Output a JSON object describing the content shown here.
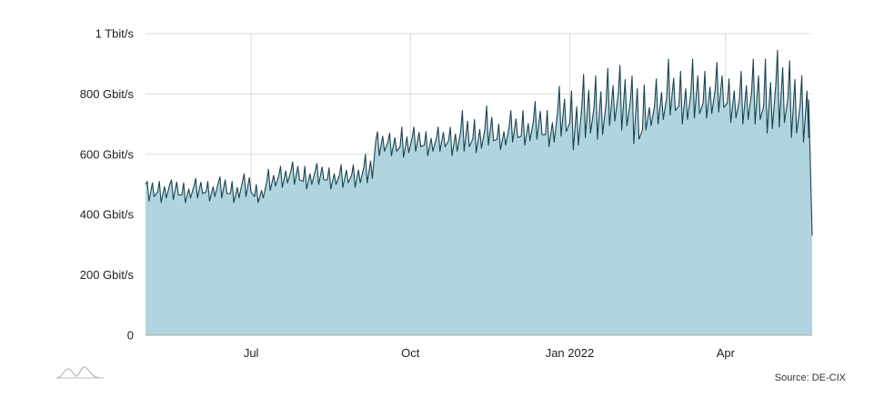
{
  "chart_data": {
    "type": "area",
    "title": "",
    "xlabel": "",
    "ylabel": "",
    "unit": "Gbit/s",
    "ylim": [
      0,
      1000
    ],
    "xlim": [
      "2021-05-01",
      "2022-05-21"
    ],
    "grid": true,
    "legend": "none",
    "colors": {
      "fill": "#b0d5de",
      "line": "#1c4450",
      "grid": "#dcdcdc",
      "axis": "#aaaaaa",
      "logo": "#bbbbbb"
    },
    "y_ticks": [
      {
        "value": 0,
        "label": "0"
      },
      {
        "value": 200,
        "label": "200 Gbit/s"
      },
      {
        "value": 400,
        "label": "400 Gbit/s"
      },
      {
        "value": 600,
        "label": "600 Gbit/s"
      },
      {
        "value": 800,
        "label": "800 Gbit/s"
      },
      {
        "value": 1000,
        "label": "1 Tbit/s"
      }
    ],
    "x_ticks": [
      {
        "value": "2021-07-01",
        "label": "Jul"
      },
      {
        "value": "2021-10-01",
        "label": "Oct"
      },
      {
        "value": "2022-01-01",
        "label": "Jan 2022"
      },
      {
        "value": "2022-04-01",
        "label": "Apr"
      }
    ],
    "series": [
      {
        "x": [
          "2021-05-01",
          "2021-05-08",
          "2021-05-15",
          "2021-05-22",
          "2021-05-29",
          "2021-06-05",
          "2021-06-12",
          "2021-06-19",
          "2021-06-26",
          "2021-07-03",
          "2021-07-10",
          "2021-07-17",
          "2021-07-24",
          "2021-07-31",
          "2021-08-07",
          "2021-08-14",
          "2021-08-21",
          "2021-08-28",
          "2021-09-04",
          "2021-09-11",
          "2021-09-18",
          "2021-09-25",
          "2021-10-02",
          "2021-10-09",
          "2021-10-16",
          "2021-10-23",
          "2021-10-30",
          "2021-11-06",
          "2021-11-13",
          "2021-11-20",
          "2021-11-27",
          "2021-12-04",
          "2021-12-11",
          "2021-12-18",
          "2021-12-25",
          "2022-01-01",
          "2022-01-08",
          "2022-01-15",
          "2022-01-22",
          "2022-01-29",
          "2022-02-05",
          "2022-02-12",
          "2022-02-19",
          "2022-02-26",
          "2022-03-05",
          "2022-03-12",
          "2022-03-19",
          "2022-03-26",
          "2022-04-02",
          "2022-04-09",
          "2022-04-16",
          "2022-04-23",
          "2022-04-30",
          "2022-05-07",
          "2022-05-14",
          "2022-05-21"
        ],
        "values": [
          500,
          475,
          500,
          465,
          495,
          475,
          505,
          470,
          510,
          460,
          510,
          530,
          545,
          510,
          545,
          515,
          530,
          530,
          555,
          645,
          640,
          625,
          655,
          630,
          655,
          645,
          675,
          650,
          685,
          650,
          690,
          660,
          710,
          665,
          740,
          705,
          760,
          755,
          770,
          800,
          775,
          680,
          760,
          790,
          760,
          805,
          770,
          815,
          770,
          780,
          805,
          760,
          830,
          785,
          760,
          330
        ],
        "peaks": [
          510,
          510,
          515,
          505,
          520,
          510,
          525,
          510,
          535,
          500,
          550,
          560,
          575,
          560,
          570,
          555,
          565,
          565,
          600,
          675,
          670,
          690,
          690,
          675,
          690,
          690,
          745,
          715,
          760,
          700,
          745,
          745,
          775,
          745,
          825,
          810,
          865,
          860,
          885,
          895,
          860,
          830,
          850,
          915,
          875,
          915,
          875,
          905,
          850,
          875,
          915,
          915,
          945,
          910,
          860,
          780
        ],
        "troughs": [
          445,
          440,
          450,
          440,
          455,
          445,
          455,
          440,
          460,
          440,
          480,
          490,
          500,
          485,
          500,
          485,
          490,
          490,
          505,
          595,
          595,
          590,
          610,
          595,
          610,
          595,
          610,
          605,
          630,
          615,
          640,
          630,
          650,
          625,
          660,
          615,
          655,
          650,
          695,
          680,
          635,
          680,
          700,
          730,
          700,
          720,
          720,
          740,
          705,
          700,
          700,
          670,
          690,
          655,
          640,
          330
        ]
      }
    ]
  },
  "footer": {
    "source_label": "Source: DE-CIX",
    "logo_icon": "de-cix-logo-icon"
  }
}
